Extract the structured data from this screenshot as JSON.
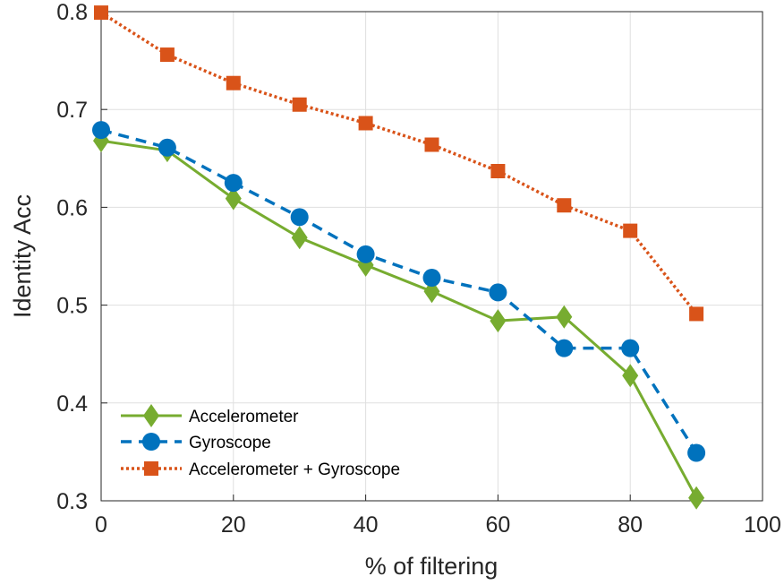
{
  "chart_data": {
    "type": "line",
    "xlabel": "% of filtering",
    "ylabel": "Identity Acc",
    "xlim": [
      0,
      100
    ],
    "ylim": [
      0.3,
      0.8
    ],
    "xticks": [
      0,
      20,
      40,
      60,
      80,
      100
    ],
    "xtick_labels": [
      "0",
      "20",
      "40",
      "60",
      "80",
      "100"
    ],
    "yticks": [
      0.3,
      0.4,
      0.5,
      0.6,
      0.7,
      0.8
    ],
    "ytick_labels": [
      "0.3",
      "0.4",
      "0.5",
      "0.6",
      "0.7",
      "0.8"
    ],
    "grid": true,
    "legend_position": "bottom-left",
    "x": [
      0,
      10,
      20,
      30,
      40,
      50,
      60,
      70,
      80,
      90
    ],
    "series": [
      {
        "name": "Accelerometer",
        "values": [
          0.668,
          0.658,
          0.609,
          0.569,
          0.541,
          0.514,
          0.484,
          0.488,
          0.428,
          0.303
        ],
        "color": "#77AC30",
        "line_style": "solid",
        "marker": "diamond"
      },
      {
        "name": "Gyroscope",
        "values": [
          0.679,
          0.661,
          0.625,
          0.59,
          0.552,
          0.528,
          0.513,
          0.456,
          0.456,
          0.349
        ],
        "color": "#0072BD",
        "line_style": "dashed",
        "marker": "circle"
      },
      {
        "name": "Accelerometer + Gyroscope",
        "values": [
          0.799,
          0.756,
          0.727,
          0.705,
          0.686,
          0.664,
          0.637,
          0.602,
          0.576,
          0.491
        ],
        "color": "#D95319",
        "line_style": "dotted",
        "marker": "square"
      }
    ]
  }
}
